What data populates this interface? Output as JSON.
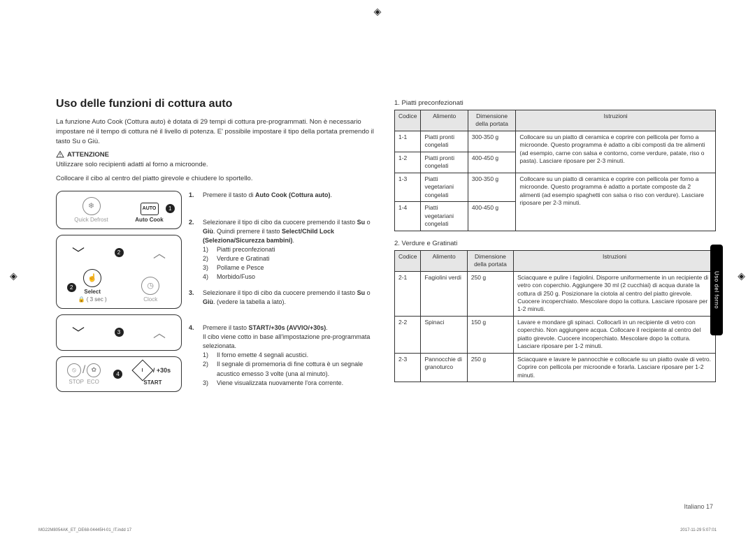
{
  "section_title": "Uso delle funzioni di cottura auto",
  "intro": "La funzione Auto Cook (Cottura auto) è dotata di 29 tempi di cottura pre-programmati. Non è necessario impostare né il tempo di cottura né il livello di potenza. E' possibile impostare il tipo della portata premendo il tasto Su o Giù.",
  "attn_label": "ATTENZIONE",
  "attn_text": "Utilizzare solo recipienti adatti al forno a microonde.",
  "instr_text": "Collocare il cibo al centro del piatto girevole e chiudere lo sportello.",
  "panel": {
    "quick_defrost": "Quick Defrost",
    "auto_cook": "Auto Cook",
    "auto_label": "AUTO",
    "select": "Select",
    "clock": "Clock",
    "lock_time": "( 3 sec )",
    "plus30": "/ +30s",
    "stop": "STOP",
    "eco": "ECO",
    "start": "START"
  },
  "steps": [
    {
      "n": "1.",
      "head": "Premere il tasto di Auto Cook (Cottura auto)."
    },
    {
      "n": "2.",
      "head": "Selezionare il tipo di cibo da cuocere premendo il tasto Su o Giù. Quindi premere il tasto Select/Child Lock (Seleziona/Sicurezza bambini).",
      "list": [
        "Piatti preconfezionati",
        "Verdure e Gratinati",
        "Pollame e Pesce",
        "Morbido/Fuso"
      ]
    },
    {
      "n": "3.",
      "head": "Selezionare il tipo di cibo da cuocere premendo il tasto Su o Giù. (vedere la tabella a lato)."
    },
    {
      "n": "4.",
      "head": "Premere il tasto START/+30s (AVVIO/+30s).",
      "body": "Il cibo viene cotto in base all'impostazione pre-programmata selezionata.",
      "list": [
        "Il forno emette 4 segnali acustici.",
        "Il segnale di promemoria di fine cottura è un segnale acustico emesso 3 volte (una al minuto).",
        "Viene visualizzata nuovamente l'ora corrente."
      ]
    }
  ],
  "table1_title": "1. Piatti preconfezionati",
  "table_headers": [
    "Codice",
    "Alimento",
    "Dimensione della portata",
    "Istruzioni"
  ],
  "table1_rows": [
    {
      "code": "1-1",
      "food": "Piatti pronti congelati",
      "size": "300-350 g",
      "instr": "Collocare su un piatto di ceramica e coprire con pellicola per forno a microonde. Questo programma è adatto a cibi composti da tre alimenti (ad esempio, carne con salsa e contorno, come verdure, patate, riso o pasta). Lasciare riposare per 2-3 minuti.",
      "span": 2
    },
    {
      "code": "1-2",
      "food": "Piatti pronti congelati",
      "size": "400-450 g",
      "instr": null
    },
    {
      "code": "1-3",
      "food": "Piatti vegetariani congelati",
      "size": "300-350 g",
      "instr": "Collocare su un piatto di ceramica e coprire con pellicola per forno a microonde. Questo programma è adatto a portate composte da 2 alimenti (ad esempio spaghetti con salsa o riso con verdure). Lasciare riposare per 2-3 minuti.",
      "span": 2
    },
    {
      "code": "1-4",
      "food": "Piatti vegetariani congelati",
      "size": "400-450 g",
      "instr": null
    }
  ],
  "table2_title": "2. Verdure e Gratinati",
  "table2_rows": [
    {
      "code": "2-1",
      "food": "Fagiolini verdi",
      "size": "250 g",
      "instr": "Sciacquare e pulire i fagiolini. Disporre uniformemente in un recipiente di vetro con coperchio. Aggiungere 30 ml (2 cucchiai) di acqua durate la cottura di 250 g. Posizionare la ciotola al centro del piatto girevole. Cuocere incoperchiato. Mescolare dopo la cottura. Lasciare riposare per 1-2 minuti."
    },
    {
      "code": "2-2",
      "food": "Spinaci",
      "size": "150 g",
      "instr": "Lavare e mondare gli spinaci. Collocarli in un recipiente di vetro con coperchio. Non aggiungere acqua. Collocare il recipiente al centro del piatto girevole. Cuocere incoperchiato. Mescolare dopo la cottura. Lasciare riposare per 1-2 minuti."
    },
    {
      "code": "2-3",
      "food": "Pannocchie di granoturco",
      "size": "250 g",
      "instr": "Sciacquare e lavare le pannocchie e collocarle su un piatto ovale di vetro. Coprire con pellicola per microonde e forarla. Lasciare riposare per 1-2 minuti."
    }
  ],
  "side_tab": "Uso del forno",
  "page_footer": "Italiano  17",
  "footer_left": "MG22M8054AK_ET_DE68-04445H-01_IT.indd   17",
  "footer_ts": "2017-11-29   5:07:01"
}
